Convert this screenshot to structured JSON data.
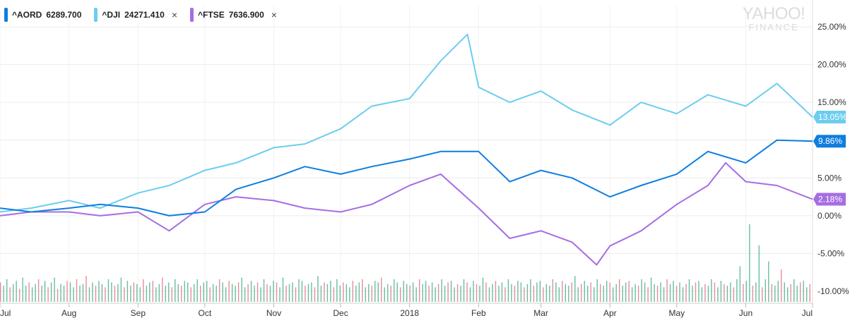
{
  "legend": [
    {
      "name": "^AORD",
      "value": "6289.700",
      "color": "#0e7ee0",
      "closable": false
    },
    {
      "name": "^DJI",
      "value": "24271.410",
      "color": "#6ccdf0",
      "closable": true
    },
    {
      "name": "^FTSE",
      "value": "7636.900",
      "color": "#a56ee3",
      "closable": true
    }
  ],
  "close_icon": "×",
  "watermark": {
    "line1": "YAHOO!",
    "line2": "FINANCE"
  },
  "chart_data": {
    "type": "line",
    "x_labels": [
      "Jul",
      "Aug",
      "Sep",
      "Oct",
      "Nov",
      "Dec",
      "2018",
      "Feb",
      "Mar",
      "Apr",
      "May",
      "Jun",
      "Jul"
    ],
    "y_ticks": [
      "25.00%",
      "20.00%",
      "15.00%",
      "10.00%",
      "5.00%",
      "0.00%",
      "-5.00%",
      "-10.00%"
    ],
    "ylim": [
      -10,
      25
    ],
    "grid": true,
    "series": [
      {
        "name": "^AORD",
        "color": "#0e7ee0",
        "last_label": "9.86%",
        "x": [
          "2017-07-01",
          "2017-07-15",
          "2017-08-01",
          "2017-08-15",
          "2017-09-01",
          "2017-09-15",
          "2017-10-01",
          "2017-10-15",
          "2017-11-01",
          "2017-11-15",
          "2017-12-01",
          "2017-12-15",
          "2018-01-01",
          "2018-01-15",
          "2018-02-01",
          "2018-02-15",
          "2018-03-01",
          "2018-03-15",
          "2018-04-01",
          "2018-04-15",
          "2018-05-01",
          "2018-05-15",
          "2018-06-01",
          "2018-06-15",
          "2018-07-01"
        ],
        "y": [
          1.0,
          0.5,
          1.0,
          1.5,
          1.0,
          0.0,
          0.5,
          3.5,
          5.0,
          6.5,
          5.5,
          6.5,
          7.5,
          8.5,
          8.5,
          4.5,
          6.0,
          5.0,
          2.5,
          4.0,
          5.5,
          8.5,
          7.0,
          10.0,
          9.86
        ]
      },
      {
        "name": "^DJI",
        "color": "#6ccdf0",
        "last_label": "13.05%",
        "x": [
          "2017-07-01",
          "2017-07-15",
          "2017-08-01",
          "2017-08-15",
          "2017-09-01",
          "2017-09-15",
          "2017-10-01",
          "2017-10-15",
          "2017-11-01",
          "2017-11-15",
          "2017-12-01",
          "2017-12-15",
          "2018-01-01",
          "2018-01-15",
          "2018-01-27",
          "2018-02-01",
          "2018-02-15",
          "2018-03-01",
          "2018-03-15",
          "2018-04-01",
          "2018-04-15",
          "2018-05-01",
          "2018-05-15",
          "2018-06-01",
          "2018-06-15",
          "2018-07-01"
        ],
        "y": [
          0.5,
          1.0,
          2.0,
          1.0,
          3.0,
          4.0,
          6.0,
          7.0,
          9.0,
          9.5,
          11.5,
          14.5,
          15.5,
          20.5,
          24.0,
          17.0,
          15.0,
          16.5,
          14.0,
          12.0,
          15.0,
          13.5,
          16.0,
          14.5,
          17.5,
          13.05
        ]
      },
      {
        "name": "^FTSE",
        "color": "#a56ee3",
        "last_label": "2.18%",
        "x": [
          "2017-07-01",
          "2017-07-15",
          "2017-08-01",
          "2017-08-15",
          "2017-09-01",
          "2017-09-15",
          "2017-10-01",
          "2017-10-15",
          "2017-11-01",
          "2017-11-15",
          "2017-12-01",
          "2017-12-15",
          "2018-01-01",
          "2018-01-15",
          "2018-02-01",
          "2018-02-15",
          "2018-03-01",
          "2018-03-15",
          "2018-03-26",
          "2018-04-01",
          "2018-04-15",
          "2018-05-01",
          "2018-05-15",
          "2018-05-23",
          "2018-06-01",
          "2018-06-15",
          "2018-07-01"
        ],
        "y": [
          0.0,
          0.5,
          0.5,
          0.0,
          0.5,
          -2.0,
          1.5,
          2.5,
          2.0,
          1.0,
          0.5,
          1.5,
          4.0,
          5.5,
          1.0,
          -3.0,
          -2.0,
          -3.5,
          -6.5,
          -4.0,
          -2.0,
          1.5,
          4.0,
          7.0,
          4.5,
          4.0,
          2.18
        ]
      }
    ],
    "volume": {
      "x_start": "2017-07-01",
      "x_end": "2018-07-01",
      "values": [
        12,
        10,
        14,
        9,
        11,
        13,
        8,
        15,
        10,
        12,
        9,
        11,
        14,
        10,
        13,
        9,
        12,
        15,
        8,
        11,
        10,
        13,
        12,
        9,
        14,
        10,
        11,
        16,
        9,
        12,
        10,
        13,
        11,
        9,
        14,
        12,
        10,
        11,
        15,
        9,
        13,
        10,
        12,
        11,
        9,
        14,
        10,
        12,
        13,
        9,
        11,
        15,
        10,
        12,
        9,
        14,
        11,
        10,
        13,
        12,
        9,
        11,
        14,
        10,
        12,
        13,
        9,
        11,
        10,
        14,
        12,
        9,
        13,
        11,
        10,
        12,
        15,
        9,
        11,
        13,
        10,
        12,
        9,
        14,
        11,
        10,
        13,
        12,
        9,
        15,
        10,
        11,
        12,
        9,
        14,
        13,
        10,
        11,
        12,
        9,
        16,
        10,
        12,
        11,
        13,
        9,
        14,
        10,
        12,
        11,
        9,
        13,
        10,
        12,
        14,
        9,
        11,
        10,
        13,
        12,
        15,
        9,
        11,
        10,
        14,
        12,
        9,
        13,
        11,
        10,
        12,
        9,
        14,
        11,
        13,
        10,
        12,
        9,
        11,
        14,
        10,
        12,
        13,
        9,
        11,
        10,
        14,
        12,
        9,
        13,
        11,
        10,
        15,
        12,
        9,
        11,
        13,
        10,
        12,
        9,
        14,
        11,
        10,
        13,
        12,
        9,
        11,
        14,
        10,
        12,
        13,
        9,
        11,
        10,
        14,
        12,
        9,
        13,
        11,
        10,
        12,
        16,
        9,
        11,
        13,
        10,
        12,
        9,
        14,
        11,
        10,
        13,
        12,
        9,
        11,
        14,
        10,
        12,
        13,
        9,
        11,
        10,
        14,
        12,
        9,
        15,
        11,
        10,
        12,
        9,
        14,
        11,
        13,
        10,
        12,
        9,
        11,
        14,
        10,
        12,
        13,
        9,
        11,
        10,
        14,
        12,
        9,
        13,
        11,
        10,
        12,
        9,
        14,
        22,
        11,
        13,
        48,
        10,
        12,
        35,
        9,
        14,
        25,
        11,
        10,
        13,
        20,
        12,
        9,
        11,
        14,
        10,
        12,
        13,
        9,
        11
      ]
    }
  }
}
